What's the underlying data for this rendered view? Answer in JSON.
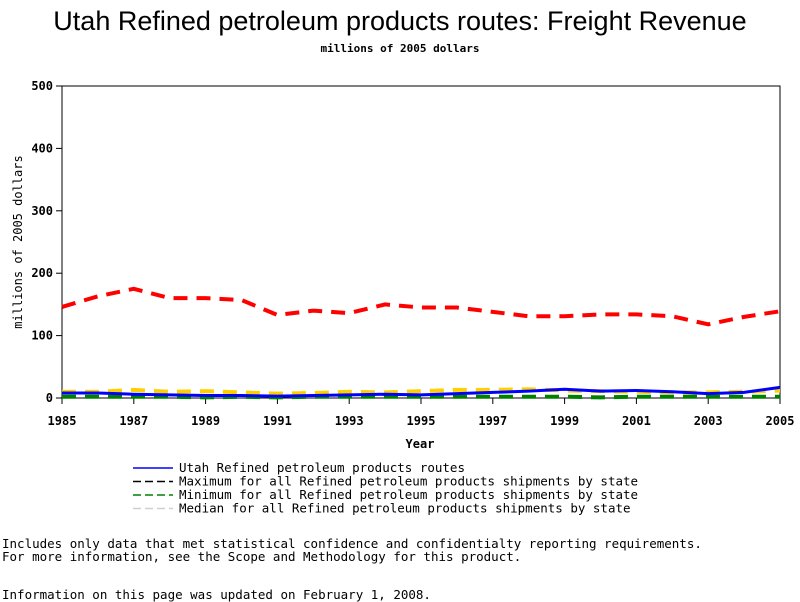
{
  "chart_data": {
    "type": "line",
    "title": "Utah Refined petroleum products routes: Freight Revenue",
    "subtitle": "millions of 2005 dollars",
    "xlabel": "Year",
    "ylabel": "millions of 2005 dollars",
    "xlim": [
      1985,
      2005
    ],
    "ylim": [
      0,
      500
    ],
    "xticks": [
      "1985",
      "1987",
      "1989",
      "1991",
      "1993",
      "1995",
      "1997",
      "1999",
      "2001",
      "2003",
      "2005"
    ],
    "yticks": [
      "0",
      "100",
      "200",
      "300",
      "400",
      "500"
    ],
    "x": [
      1985,
      1986,
      1987,
      1988,
      1989,
      1990,
      1991,
      1992,
      1993,
      1994,
      1995,
      1996,
      1997,
      1998,
      1999,
      2000,
      2001,
      2002,
      2003,
      2004,
      2005
    ],
    "series": [
      {
        "name": "Utah Refined petroleum products routes",
        "color": "#0000ff",
        "dash": "solid",
        "values": [
          8,
          8,
          6,
          5,
          4,
          4,
          3,
          4,
          5,
          6,
          5,
          7,
          9,
          11,
          14,
          11,
          12,
          10,
          7,
          9,
          17
        ]
      },
      {
        "name": "Maximum for all Refined petroleum products shipments by state",
        "color": "#ff0000",
        "dash": "dashed",
        "values": [
          146,
          163,
          175,
          160,
          160,
          157,
          133,
          140,
          136,
          150,
          145,
          145,
          138,
          131,
          131,
          134,
          134,
          131,
          118,
          130,
          139
        ]
      },
      {
        "name": "Minimum for all Refined petroleum products shipments by state",
        "color": "#008000",
        "dash": "dashed",
        "values": [
          2,
          2,
          2,
          2,
          1,
          2,
          1,
          2,
          2,
          2,
          2,
          2,
          2,
          2,
          2,
          1,
          2,
          2,
          2,
          2,
          2
        ]
      },
      {
        "name": "Median for all Refined petroleum products shipments by state",
        "color": "#ffd000",
        "dash": "dashed",
        "values": [
          10,
          10,
          13,
          10,
          11,
          9,
          7,
          8,
          10,
          9,
          11,
          13,
          13,
          14,
          12,
          11,
          10,
          9,
          9,
          10,
          12
        ]
      }
    ],
    "legend_position": "bottom"
  },
  "notes": [
    "Includes only data that met statistical confidence and confidentialty reporting requirements.",
    "For more information, see the Scope and Methodology for this product.",
    "Information on this page was updated on February 1, 2008."
  ]
}
